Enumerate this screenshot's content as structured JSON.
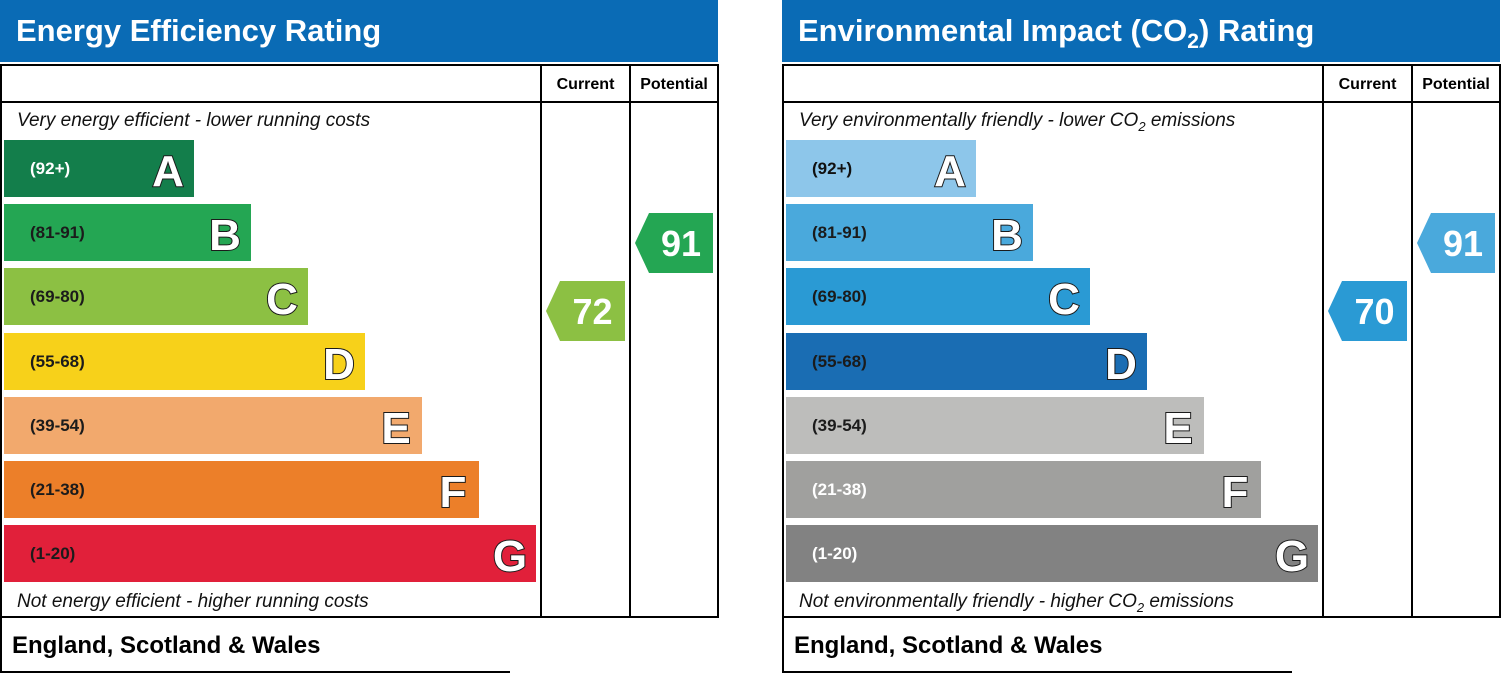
{
  "chart_data": [
    {
      "type": "bar",
      "title": "Energy Efficiency Rating",
      "columns": [
        "Current",
        "Potential"
      ],
      "top_note": "Very energy efficient - lower running costs",
      "bottom_note": "Not energy efficient - higher running costs",
      "footer": "England, Scotland & Wales",
      "bands": [
        {
          "letter": "A",
          "range": "(92+)",
          "color": "#137e4b",
          "text_color": "#ffffff"
        },
        {
          "letter": "B",
          "range": "(81-91)",
          "color": "#24a653",
          "text_color": "#1b1b1b"
        },
        {
          "letter": "C",
          "range": "(69-80)",
          "color": "#8cc043",
          "text_color": "#1b1b1b"
        },
        {
          "letter": "D",
          "range": "(55-68)",
          "color": "#f7d11a",
          "text_color": "#1b1b1b"
        },
        {
          "letter": "E",
          "range": "(39-54)",
          "color": "#f2a96d",
          "text_color": "#1b1b1b"
        },
        {
          "letter": "F",
          "range": "(21-38)",
          "color": "#ec7f29",
          "text_color": "#1b1b1b"
        },
        {
          "letter": "G",
          "range": "(1-20)",
          "color": "#e1203a",
          "text_color": "#1b1b1b"
        }
      ],
      "current": {
        "value": 72,
        "label": "72",
        "band": "C",
        "color": "#8cc043"
      },
      "potential": {
        "value": 91,
        "label": "91",
        "band": "B",
        "color": "#24a653"
      }
    },
    {
      "type": "bar",
      "title": "Environmental Impact (CO2) Rating",
      "title_parts": {
        "pre": "Environmental Impact (CO",
        "sub": "2",
        "post": ") Rating"
      },
      "columns": [
        "Current",
        "Potential"
      ],
      "top_note": "Very environmentally friendly - lower CO2 emissions",
      "top_note_parts": {
        "pre": "Very environmentally friendly - lower CO",
        "sub": "2",
        "post": " emissions"
      },
      "bottom_note": "Not environmentally friendly - higher CO2 emissions",
      "bottom_note_parts": {
        "pre": "Not environmentally friendly - higher CO",
        "sub": "2",
        "post": " emissions"
      },
      "footer": "England, Scotland & Wales",
      "bands": [
        {
          "letter": "A",
          "range": "(92+)",
          "color": "#8dc6ea",
          "text_color": "#111111"
        },
        {
          "letter": "B",
          "range": "(81-91)",
          "color": "#4aa9dc",
          "text_color": "#1b1b1b"
        },
        {
          "letter": "C",
          "range": "(69-80)",
          "color": "#2a9ad4",
          "text_color": "#1b1b1b"
        },
        {
          "letter": "D",
          "range": "(55-68)",
          "color": "#1a6db3",
          "text_color": "#1b1b1b"
        },
        {
          "letter": "E",
          "range": "(39-54)",
          "color": "#bdbdbb",
          "text_color": "#1b1b1b"
        },
        {
          "letter": "F",
          "range": "(21-38)",
          "color": "#a0a09e",
          "text_color": "#ffffff"
        },
        {
          "letter": "G",
          "range": "(1-20)",
          "color": "#828282",
          "text_color": "#ffffff"
        }
      ],
      "current": {
        "value": 70,
        "label": "70",
        "band": "C",
        "color": "#2a9ad4"
      },
      "potential": {
        "value": 91,
        "label": "91",
        "band": "B",
        "color": "#4aa9dc"
      }
    }
  ]
}
